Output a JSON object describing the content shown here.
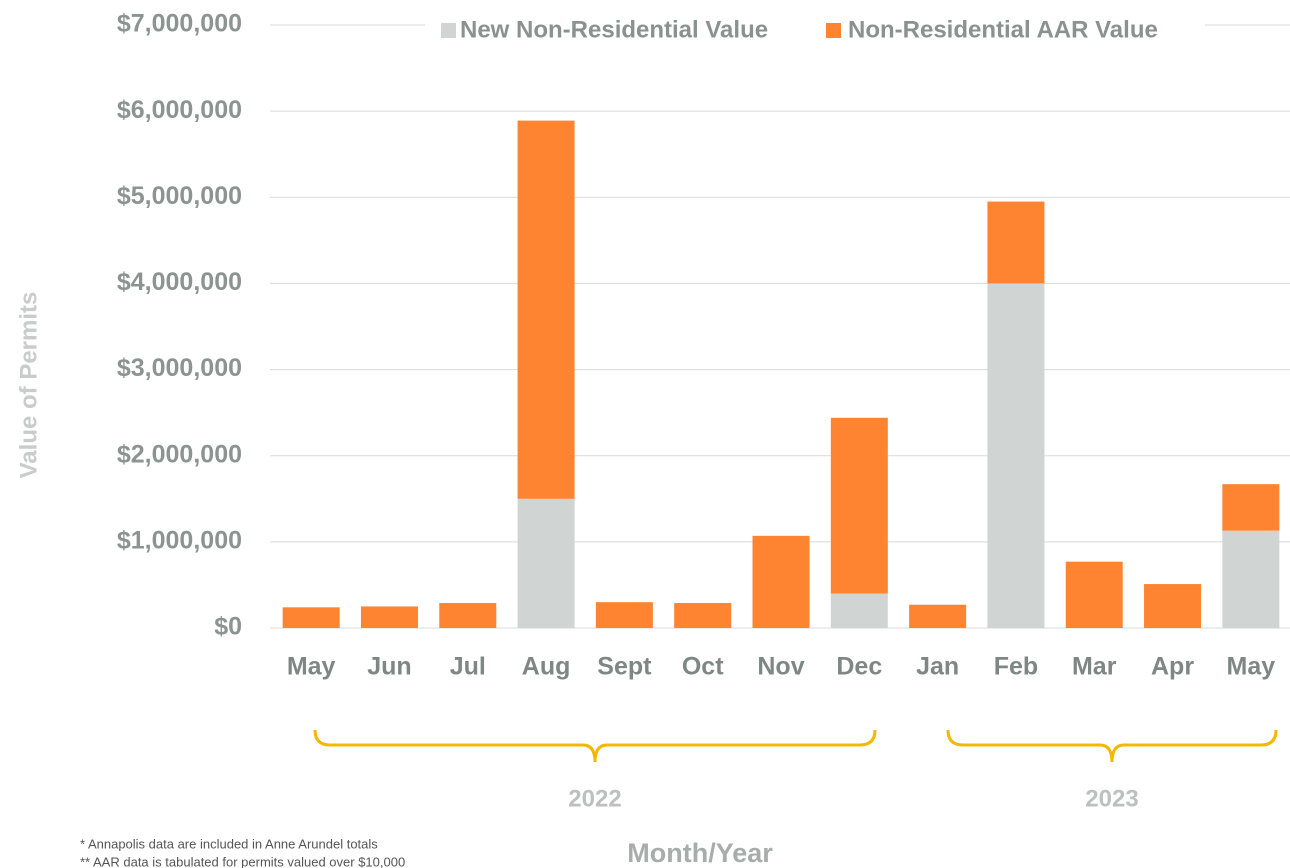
{
  "chart_data": {
    "type": "stacked_bar",
    "categories": [
      "May",
      "Jun",
      "Jul",
      "Aug",
      "Sept",
      "Oct",
      "Nov",
      "Dec",
      "Jan",
      "Feb",
      "Mar",
      "Apr",
      "May"
    ],
    "series": [
      {
        "name": "New Non-Residential Value",
        "color": "#d0d4d3",
        "values": [
          0,
          0,
          0,
          1500000,
          0,
          0,
          0,
          400000,
          0,
          4000000,
          0,
          0,
          1130000
        ]
      },
      {
        "name": "Non-Residential AAR Value",
        "color": "#fe8431",
        "values": [
          240000,
          250000,
          290000,
          4390000,
          300000,
          290000,
          1070000,
          2040000,
          270000,
          950000,
          770000,
          510000,
          540000
        ]
      }
    ],
    "ylim": [
      0,
      7000000
    ],
    "yticks": [
      {
        "value": 0,
        "label": "$0"
      },
      {
        "value": 1000000,
        "label": "$1,000,000"
      },
      {
        "value": 2000000,
        "label": "$2,000,000"
      },
      {
        "value": 3000000,
        "label": "$3,000,000"
      },
      {
        "value": 4000000,
        "label": "$4,000,000"
      },
      {
        "value": 5000000,
        "label": "$5,000,000"
      },
      {
        "value": 6000000,
        "label": "$6,000,000"
      },
      {
        "value": 7000000,
        "label": "$7,000,000"
      }
    ],
    "grid": true,
    "legend": "top",
    "y_label": "Value of Permits",
    "x_label": "Month/Year",
    "groups": [
      "2022",
      "2023"
    ],
    "footnotes": [
      "*  Annapolis data are  included in Anne Arundel totals",
      "** AAR data is tabulated for permits valued over $10,000"
    ]
  }
}
